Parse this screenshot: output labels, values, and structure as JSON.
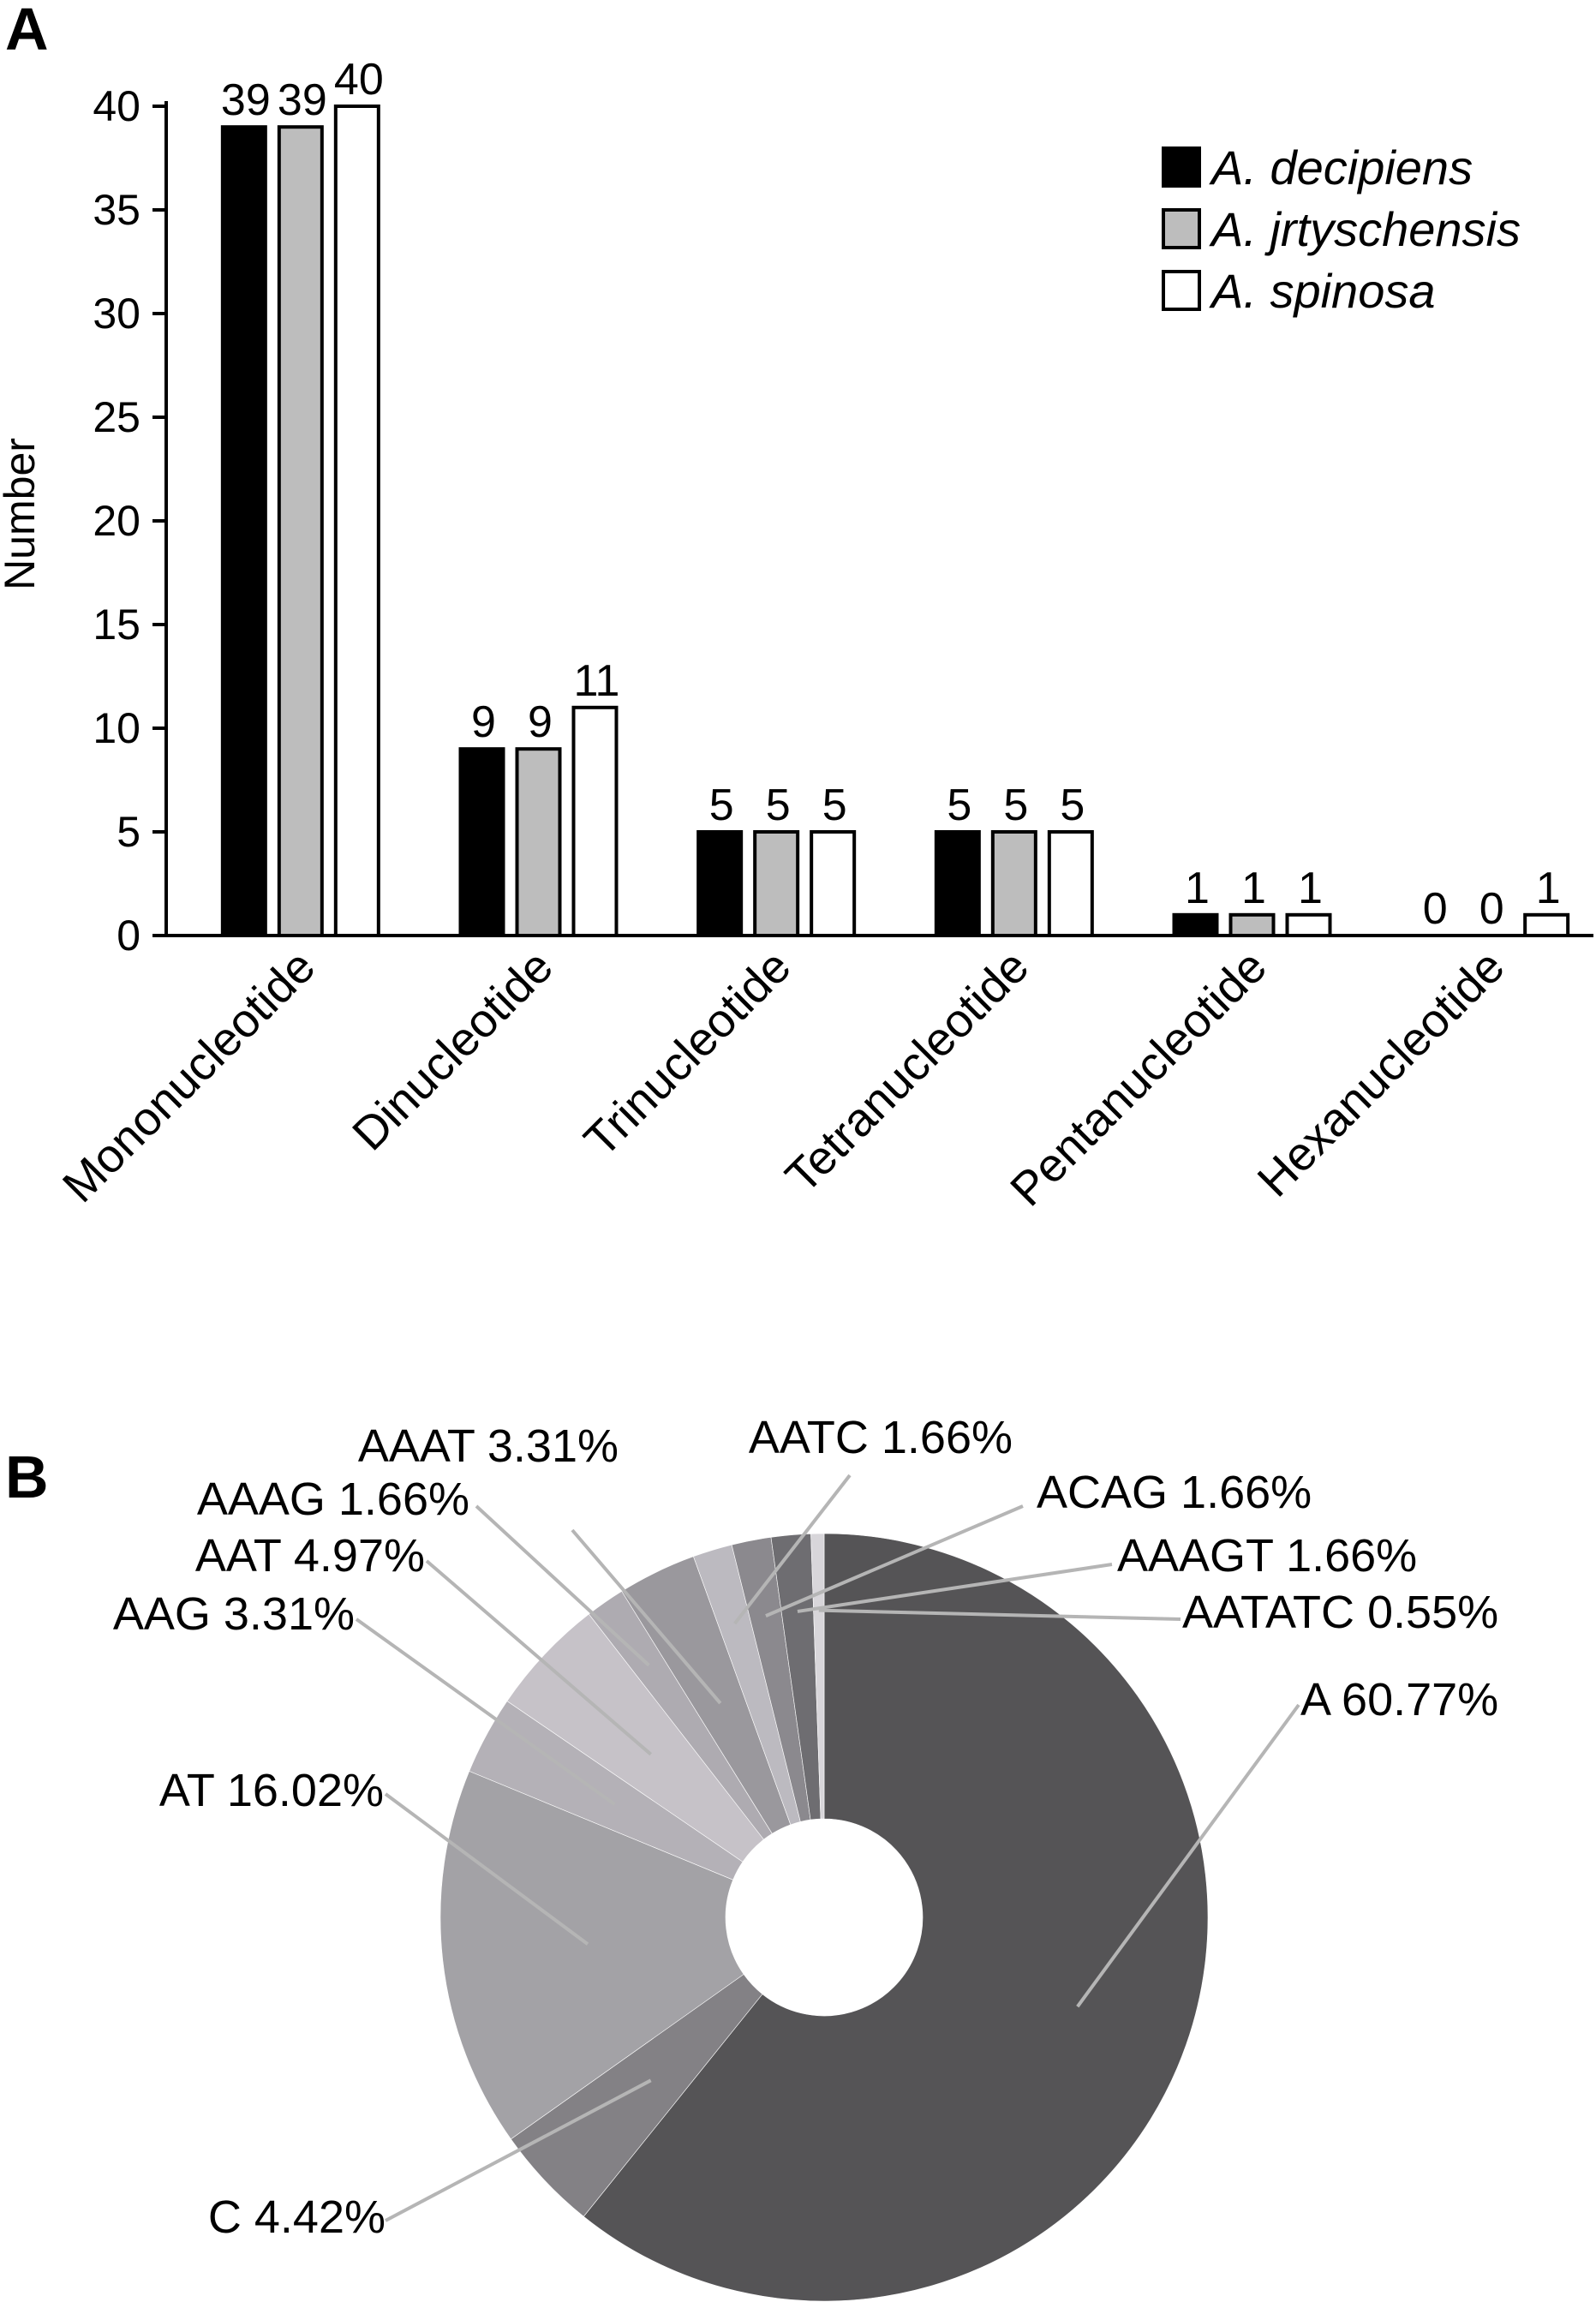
{
  "chart_data": [
    {
      "panel": "A",
      "type": "bar",
      "title": "",
      "xlabel": "",
      "ylabel": "Number",
      "ylim": [
        0,
        40
      ],
      "yticks": [
        0,
        5,
        10,
        15,
        20,
        25,
        30,
        35,
        40
      ],
      "grid": false,
      "legend_position": "top-right",
      "categories": [
        "Mononucleotide",
        "Dinucleotide",
        "Trinucleotide",
        "Tetranucleotide",
        "Pentanucleotide",
        "Hexanucleotide"
      ],
      "series": [
        {
          "name": "A. decipiens",
          "color": "#000000",
          "values": [
            39,
            9,
            5,
            5,
            1,
            0
          ]
        },
        {
          "name": "A. jrtyschensis",
          "color": "#bdbdbd",
          "values": [
            39,
            9,
            5,
            5,
            1,
            0
          ]
        },
        {
          "name": "A. spinosa",
          "color": "#ffffff",
          "values": [
            40,
            11,
            5,
            5,
            1,
            1
          ]
        }
      ]
    },
    {
      "panel": "B",
      "type": "pie",
      "variant": "donut",
      "title": "",
      "slices": [
        {
          "label": "A 60.77%",
          "value": 60.77,
          "color": "#555456"
        },
        {
          "label": "C 4.42%",
          "value": 4.42,
          "color": "#838185"
        },
        {
          "label": "AT 16.02%",
          "value": 16.02,
          "color": "#a3a2a6"
        },
        {
          "label": "AAG 3.31%",
          "value": 3.31,
          "color": "#b4b1b7"
        },
        {
          "label": "AAT 4.97%",
          "value": 4.97,
          "color": "#c6c2c8"
        },
        {
          "label": "AAAG 1.66%",
          "value": 1.66,
          "color": "#aeabb1"
        },
        {
          "label": "AAAT 3.31%",
          "value": 3.31,
          "color": "#9a989d"
        },
        {
          "label": "AATC 1.66%",
          "value": 1.66,
          "color": "#bcbac0"
        },
        {
          "label": "ACAG 1.66%",
          "value": 1.66,
          "color": "#8b898e"
        },
        {
          "label": "AAAGT 1.66%",
          "value": 1.66,
          "color": "#6e6d71"
        },
        {
          "label": "AATATC 0.55%",
          "value": 0.55,
          "color": "#d8d6da"
        }
      ]
    }
  ],
  "panels": {
    "a_label": "A",
    "b_label": "B"
  }
}
